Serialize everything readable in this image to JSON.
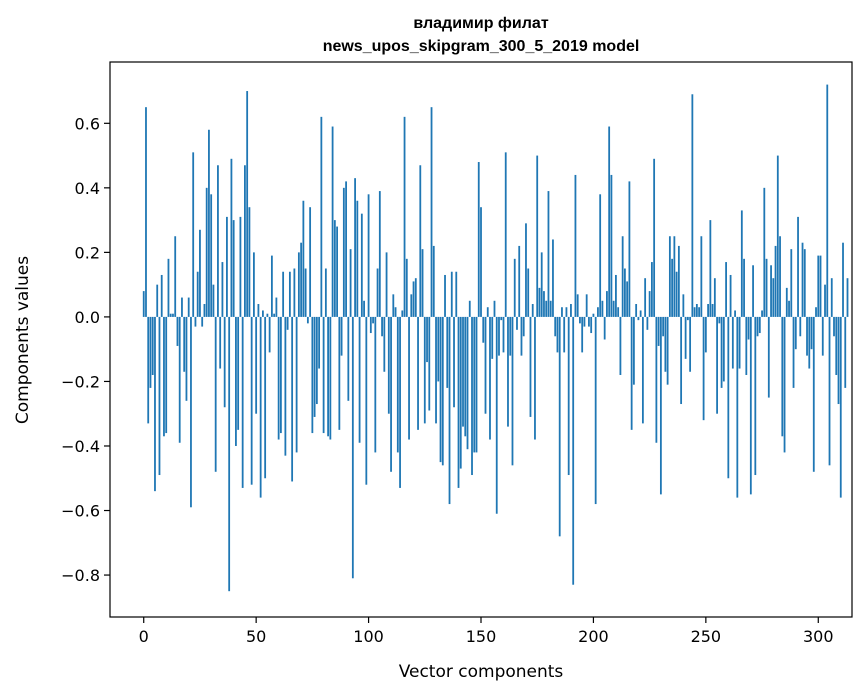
{
  "chart_data": {
    "type": "bar",
    "title": "владимир филат",
    "subtitle": "news_upos_skipgram_300_5_2019 model",
    "xlabel": "Vector components",
    "ylabel": "Components values",
    "xlim": [
      -15,
      315
    ],
    "ylim": [
      -0.93,
      0.79
    ],
    "xticks": [
      0,
      50,
      100,
      150,
      200,
      250,
      300
    ],
    "xtick_labels": [
      "0",
      "50",
      "100",
      "150",
      "200",
      "250",
      "300"
    ],
    "yticks": [
      -0.8,
      -0.6,
      -0.4,
      -0.2,
      0.0,
      0.2,
      0.4,
      0.6
    ],
    "ytick_labels": [
      "−0.8",
      "−0.6",
      "−0.4",
      "−0.2",
      "0.0",
      "0.2",
      "0.4",
      "0.6"
    ],
    "bar_color": "#1f77b4",
    "grid": false,
    "values": [
      0.08,
      0.65,
      -0.33,
      -0.22,
      -0.18,
      -0.54,
      0.1,
      -0.49,
      0.13,
      -0.37,
      -0.36,
      0.18,
      0.01,
      0.01,
      0.25,
      -0.09,
      -0.39,
      0.06,
      -0.17,
      -0.26,
      0.06,
      -0.59,
      0.51,
      -0.03,
      0.14,
      0.27,
      -0.03,
      0.04,
      0.4,
      0.58,
      0.38,
      0.1,
      -0.48,
      0.47,
      -0.16,
      0.17,
      -0.28,
      0.31,
      -0.85,
      0.49,
      0.3,
      -0.4,
      -0.35,
      0.31,
      -0.53,
      0.47,
      0.7,
      0.34,
      -0.52,
      0.2,
      -0.3,
      0.04,
      -0.56,
      0.02,
      -0.5,
      0.01,
      -0.11,
      0.19,
      0.01,
      0.06,
      -0.38,
      -0.36,
      0.14,
      -0.43,
      -0.04,
      0.14,
      -0.51,
      0.15,
      -0.42,
      0.2,
      0.23,
      0.36,
      0.15,
      -0.02,
      0.34,
      -0.36,
      -0.31,
      -0.27,
      -0.16,
      0.62,
      -0.36,
      0.15,
      -0.37,
      -0.38,
      0.59,
      0.3,
      0.28,
      -0.35,
      -0.12,
      0.4,
      0.42,
      -0.26,
      0.21,
      -0.81,
      0.43,
      0.36,
      -0.39,
      0.32,
      0.05,
      -0.52,
      0.38,
      -0.05,
      -0.02,
      -0.42,
      0.15,
      0.39,
      -0.06,
      -0.17,
      0.2,
      -0.3,
      -0.48,
      0.07,
      0.03,
      -0.42,
      -0.53,
      0.02,
      0.62,
      0.18,
      -0.38,
      0.07,
      0.11,
      0.12,
      -0.35,
      0.47,
      0.21,
      -0.33,
      -0.14,
      -0.29,
      0.65,
      0.22,
      -0.33,
      -0.2,
      -0.45,
      -0.46,
      0.13,
      -0.22,
      -0.58,
      0.14,
      -0.28,
      0.14,
      -0.53,
      -0.47,
      -0.34,
      -0.37,
      -0.41,
      0.05,
      -0.49,
      -0.42,
      -0.42,
      0.48,
      0.34,
      -0.08,
      -0.3,
      0.03,
      -0.38,
      -0.13,
      0.05,
      -0.61,
      -0.12,
      -0.01,
      -0.11,
      0.51,
      -0.34,
      -0.12,
      -0.46,
      0.18,
      -0.04,
      0.22,
      -0.12,
      -0.06,
      0.29,
      0.15,
      -0.31,
      0.04,
      -0.38,
      0.5,
      0.09,
      0.2,
      0.08,
      0.05,
      0.39,
      0.05,
      0.24,
      -0.06,
      -0.11,
      -0.68,
      0.03,
      -0.11,
      0.03,
      -0.49,
      0.04,
      -0.83,
      0.44,
      0.07,
      -0.02,
      -0.11,
      -0.03,
      0.07,
      -0.03,
      -0.05,
      0.01,
      -0.58,
      0.03,
      0.38,
      0.05,
      -0.07,
      0.08,
      0.59,
      0.44,
      0.05,
      0.13,
      0.03,
      -0.18,
      0.25,
      0.15,
      0.11,
      0.42,
      -0.35,
      -0.21,
      0.04,
      -0.01,
      0.02,
      -0.33,
      0.12,
      -0.04,
      0.08,
      0.17,
      0.49,
      -0.39,
      -0.09,
      -0.55,
      -0.06,
      -0.17,
      -0.21,
      0.25,
      0.18,
      0.25,
      0.14,
      0.22,
      -0.27,
      0.07,
      -0.13,
      -0.01,
      -0.17,
      0.69,
      0.03,
      0.04,
      0.03,
      0.25,
      -0.32,
      -0.11,
      0.04,
      0.3,
      0.04,
      0.12,
      -0.3,
      -0.02,
      -0.22,
      -0.2,
      0.17,
      -0.5,
      0.13,
      -0.16,
      0.02,
      -0.56,
      -0.16,
      0.33,
      0.18,
      -0.18,
      -0.07,
      -0.55,
      0.16,
      -0.49,
      -0.06,
      -0.05,
      0.02,
      0.4,
      0.18,
      -0.25,
      0.16,
      0.12,
      0.22,
      0.5,
      0.25,
      -0.37,
      -0.42,
      0.09,
      0.05,
      0.21,
      -0.22,
      -0.1,
      0.31,
      -0.06,
      0.23,
      0.21,
      -0.12,
      -0.16,
      -0.1,
      -0.48,
      0.03,
      0.19,
      0.19,
      -0.12,
      0.1,
      0.72,
      -0.46,
      0.12,
      -0.06,
      -0.18,
      -0.27,
      -0.56,
      0.23,
      -0.22,
      0.12
    ]
  }
}
